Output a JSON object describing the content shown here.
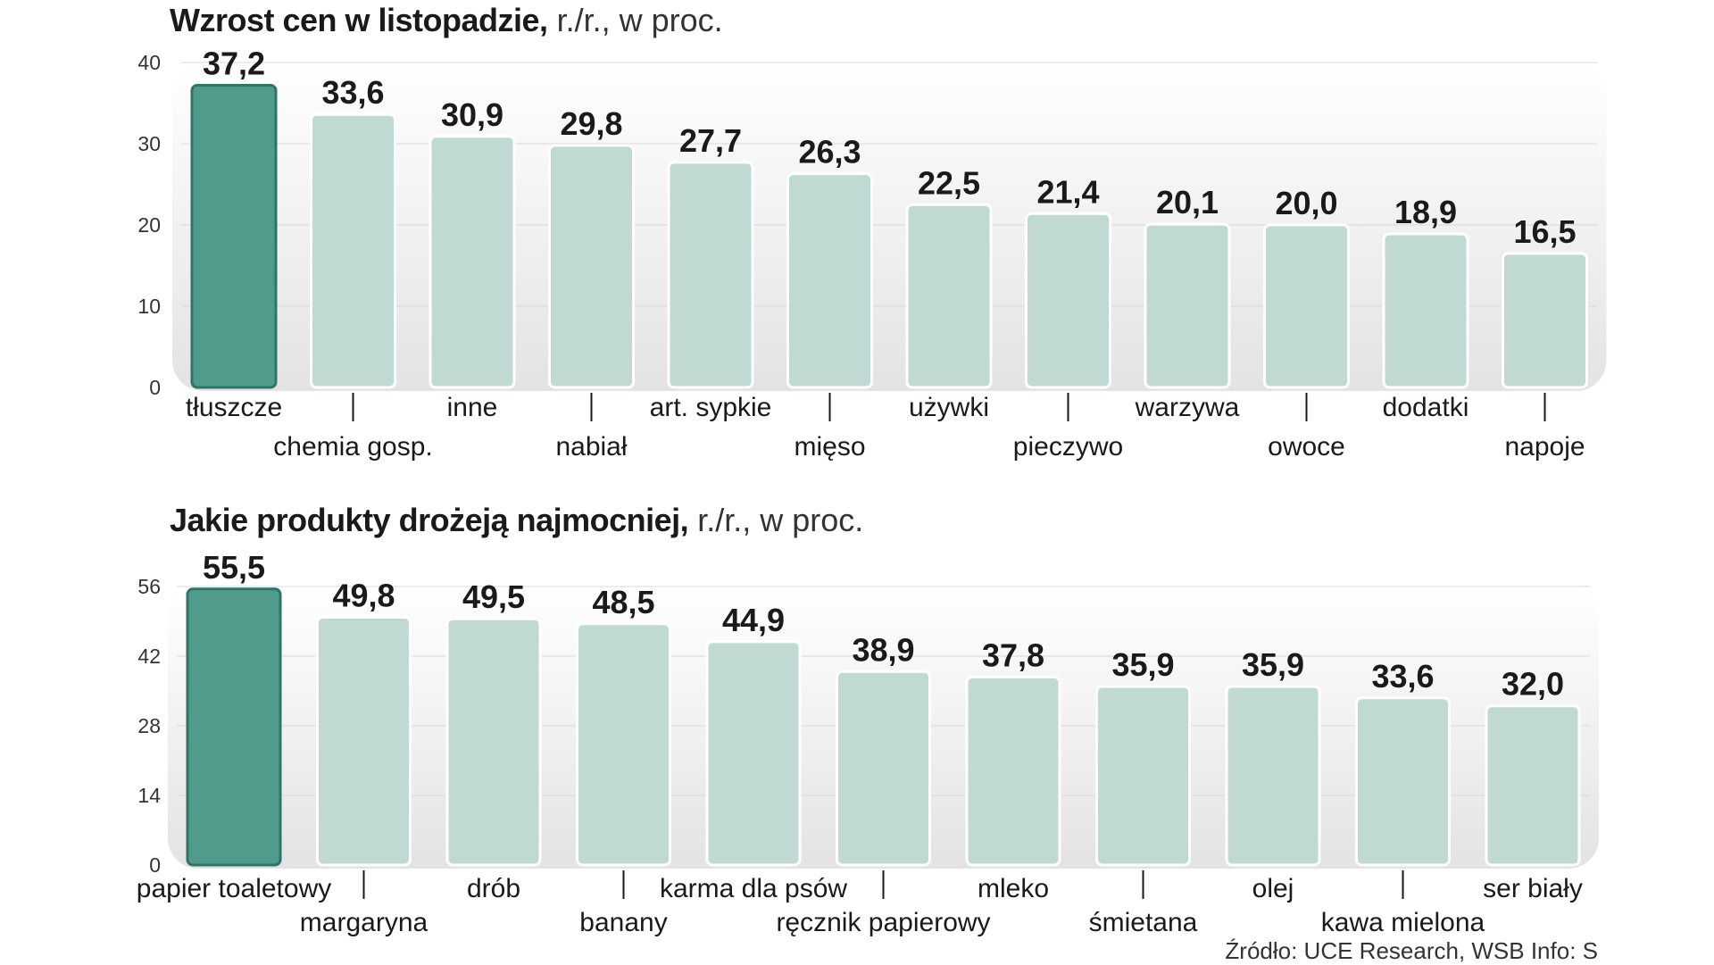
{
  "chart_data": [
    {
      "type": "bar",
      "title": "Wzrost cen w listopadzie,",
      "subtitle": "r./r., w proc.",
      "categories": [
        "tłuszcze",
        "chemia gosp.",
        "inne",
        "nabiał",
        "art. sypkie",
        "mięso",
        "używki",
        "pieczywo",
        "warzywa",
        "owoce",
        "dodatki",
        "napoje"
      ],
      "values": [
        37.2,
        33.6,
        30.9,
        29.8,
        27.7,
        26.3,
        22.5,
        21.4,
        20.1,
        20.0,
        18.9,
        16.5
      ],
      "value_labels": [
        "37,2",
        "33,6",
        "30,9",
        "29,8",
        "27,7",
        "26,3",
        "22,5",
        "21,4",
        "20,1",
        "20,0",
        "18,9",
        "16,5"
      ],
      "yticks": [
        0,
        10,
        20,
        30,
        40
      ],
      "ylim": [
        0,
        40
      ],
      "xlabel": "",
      "ylabel": "",
      "highlight_index": 0
    },
    {
      "type": "bar",
      "title": "Jakie produkty drożeją najmocniej,",
      "subtitle": "r./r., w proc.",
      "categories": [
        "papier toaletowy",
        "margaryna",
        "drób",
        "banany",
        "karma dla psów",
        "ręcznik papierowy",
        "mleko",
        "śmietana",
        "olej",
        "kawa mielona",
        "ser biały"
      ],
      "values": [
        55.5,
        49.8,
        49.5,
        48.5,
        44.9,
        38.9,
        37.8,
        35.9,
        35.9,
        33.6,
        32.0
      ],
      "value_labels": [
        "55,5",
        "49,8",
        "49,5",
        "48,5",
        "44,9",
        "38,9",
        "37,8",
        "35,9",
        "35,9",
        "33,6",
        "32,0"
      ],
      "yticks": [
        0,
        14,
        28,
        42,
        56
      ],
      "ylim": [
        0,
        56
      ],
      "xlabel": "",
      "ylabel": "",
      "highlight_index": 0
    }
  ],
  "source": "Źródło: UCE Research, WSB  Info: S",
  "colors": {
    "highlight_fill": "#4f9c8d",
    "highlight_stroke": "#2f7466",
    "bar_fill": "#c0dad3",
    "bar_stroke": "#ffffff",
    "panel_top": "#ffffff",
    "panel_bottom": "#e3e3e3"
  }
}
